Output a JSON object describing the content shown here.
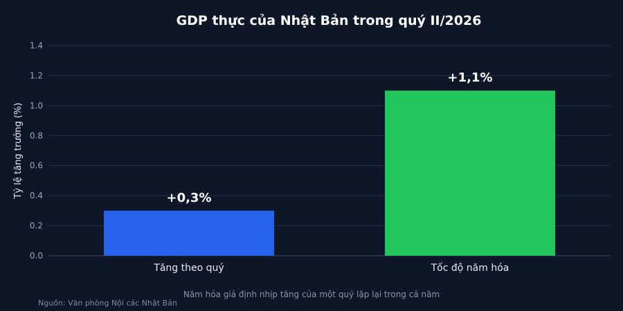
{
  "chart_data": {
    "type": "bar",
    "title": "GDP thực của Nhật Bản trong quý II/2026",
    "ylabel": "Tỷ lệ tăng trưởng (%)",
    "xlabel": "",
    "categories": [
      "Tăng theo quý",
      "Tốc độ năm hóa"
    ],
    "values": [
      0.3,
      1.1
    ],
    "data_labels": [
      "+0,3%",
      "+1,1%"
    ],
    "colors": [
      "#2563eb",
      "#22c55e"
    ],
    "ylim": [
      0,
      1.4
    ],
    "yticks": [
      "0.0",
      "0.2",
      "0.4",
      "0.6",
      "0.8",
      "1.0",
      "1.2",
      "1.4"
    ],
    "grid": true,
    "annotation": "Năm hóa giả định nhịp tăng của một quý lặp lại trong cả năm",
    "source": "Nguồn: Văn phòng Nội các Nhật Bản"
  }
}
